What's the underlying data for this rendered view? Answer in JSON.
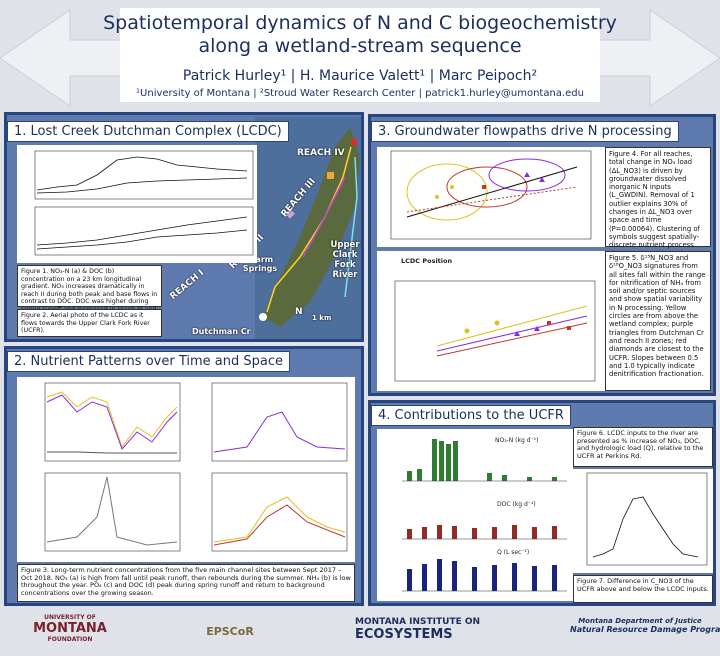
{
  "header": {
    "title_lines": [
      "Spatiotemporal dynamics of N and C biogeochemistry",
      "along a wetland-stream sequence"
    ],
    "authors": "Patrick Hurley¹ | H. Maurice Valett¹ | Marc Peipoch²",
    "affiliations": "¹University of Montana | ²Stroud Water Research Center | patrick1.hurley@umontana.edu"
  },
  "panels": [
    {
      "heading": "1. Lost Creek Dutchman Complex (LCDC)",
      "captions": [
        "Figure 1. NO₃-N (a) & DOC (b) concentration on a 23 km longitudinal gradient. NO₃ increases dramatically in reach II during both peak and base flows in contrast to DOC. DOC was higher during spring runoff and increased in reach III and IV.",
        "Figure 2. Aerial photo of the LCDC as it flows towards the Upper Clark Fork River (UCFR)."
      ],
      "map_labels": [
        "REACH IV",
        "REACH III",
        "REACH II",
        "REACH I",
        "Warm Springs",
        "Upper Clark Fork River",
        "Dutchman Cr",
        "N",
        "1 km"
      ]
    },
    {
      "heading": "2. Nutrient Patterns over Time and Space",
      "captions": [
        "Figure 3. Long-term nutrient concentrations from the five main channel sites between Sept 2017 – Oct 2018. NO₃ (a) is high from fall until peak runoff, then rebounds during the summer. NH₄ (b) is low throughout the year. PO₄ (c) and DOC (d) peak during spring runoff and return to background concentrations over the growing season."
      ]
    },
    {
      "heading": "3. Groundwater flowpaths drive N processing",
      "captions": [
        "Figure 4. For all reaches, total change in NO₃ load (ΔL_NO3) is driven by groundwater dissolved inorganic N inputs (L_GWDIN). Removal of 1 outlier explains 30% of changes in ΔL_NO3 over space and time (P=0.00064). Clustering of symbols suggest spatially-discrete nutrient process domains (NPD) based on biogeochemical character.",
        "Figure 5. δ¹⁵N_NO3 and δ¹⁸O_NO3 signatures from all sites fall within the range for nitrification of NH₄ from soil and/or septic sources and show spatial variability in N processing. Yellow circles are from above the wetland complex; purple triangles from Dutchman Cr and reach II zones; red diamonds are closest to the UCFR. Slopes between 0.5 and 1.0 typically indicate denitrification fractionation."
      ],
      "labels": [
        "LCDC Position"
      ]
    },
    {
      "heading": "4. Contributions to the UCFR",
      "captions": [
        "Figure 6. LCDC inputs to the river are presented as % increase of NO₃, DOC, and hydrologic load (Q), relative to the UCFR at Perkins Rd.",
        "Figure 7. Difference in C_NO3 of the UCFR above and below the LCDC inputs."
      ],
      "labels": [
        "NO₃-N (kg d⁻¹)",
        "DOC (kg d⁻¹)",
        "Q (L sec⁻¹)"
      ]
    }
  ],
  "logos": [
    [
      "UNIVERSITY OF",
      "MONTANA",
      "FOUNDATION"
    ],
    [
      "EPSCoR"
    ],
    [
      "MONTANA INSTITUTE ON",
      "ECOSYSTEMS"
    ],
    [
      "Montana Department of Justice",
      "Natural Resource Damage Program"
    ]
  ]
}
